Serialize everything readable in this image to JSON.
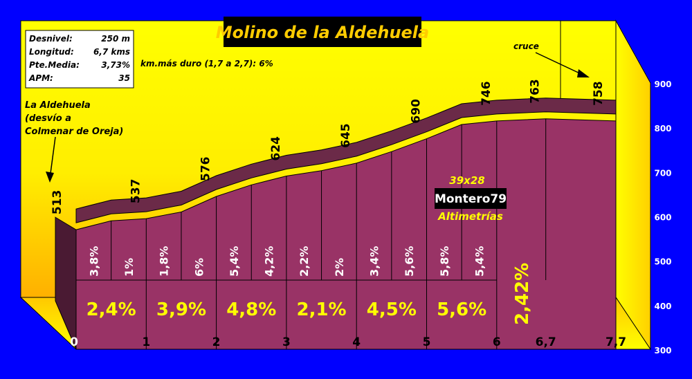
{
  "title": "Molino de la Aldehuela",
  "stats": [
    {
      "label": "Desnivel:",
      "value": "250 m"
    },
    {
      "label": "Longitud:",
      "value": "6,7 kms"
    },
    {
      "label": "Pte.Media:",
      "value": "3,73%"
    },
    {
      "label": "APM:",
      "value": "35"
    }
  ],
  "hardest_km": "km.más duro (1,7 a 2,7): 6%",
  "start_note": [
    "La Aldehuela",
    "(desvío a",
    "Colmenar de Oreja)"
  ],
  "cruce_note": "cruce",
  "credits": {
    "size": "39x28",
    "author": "Montero79",
    "site": "Altimetrías"
  },
  "colors": {
    "background": "#0000ff",
    "wall_top": "#ffff00",
    "wall_bottom": "#ffb000",
    "profile_front": "#993366",
    "profile_side": "#4a1a33",
    "profile_top": "#6b2a48",
    "labels": "#ffff00"
  },
  "chart_data": {
    "type": "area",
    "title": "Molino de la Aldehuela",
    "xlabel": "",
    "ylabel": "",
    "x_ticks": [
      "0",
      "1",
      "2",
      "3",
      "4",
      "5",
      "6",
      "6,7",
      "7,7"
    ],
    "y_ticks": [
      "300",
      "400",
      "500",
      "600",
      "700",
      "800",
      "900"
    ],
    "ylim": [
      300,
      900
    ],
    "xlim": [
      0,
      7.7
    ],
    "grid": false,
    "profile": [
      {
        "x": 0.0,
        "y": 585
      },
      {
        "x": 0.5,
        "y": 605
      },
      {
        "x": 1.0,
        "y": 610
      },
      {
        "x": 1.5,
        "y": 625
      },
      {
        "x": 2.0,
        "y": 660
      },
      {
        "x": 2.5,
        "y": 686
      },
      {
        "x": 3.0,
        "y": 706
      },
      {
        "x": 3.5,
        "y": 718
      },
      {
        "x": 4.0,
        "y": 735
      },
      {
        "x": 4.5,
        "y": 761
      },
      {
        "x": 5.0,
        "y": 790
      },
      {
        "x": 5.5,
        "y": 822
      },
      {
        "x": 6.0,
        "y": 830
      },
      {
        "x": 6.7,
        "y": 835
      },
      {
        "x": 7.7,
        "y": 830
      }
    ],
    "point_labels": [
      {
        "x": 0.0,
        "label": "513"
      },
      {
        "x": 1.0,
        "label": "537"
      },
      {
        "x": 2.0,
        "label": "576"
      },
      {
        "x": 3.0,
        "label": "624"
      },
      {
        "x": 4.0,
        "label": "645"
      },
      {
        "x": 5.0,
        "label": "690"
      },
      {
        "x": 6.0,
        "label": "746"
      },
      {
        "x": 6.7,
        "label": "763"
      },
      {
        "x": 7.7,
        "label": "758"
      }
    ],
    "half_km_gradients": [
      "3,8%",
      "1%",
      "1,8%",
      "6%",
      "5,4%",
      "4,2%",
      "2,2%",
      "2%",
      "3,4%",
      "5,6%",
      "5,8%",
      "5,4%"
    ],
    "km_gradients": [
      "2,4%",
      "3,9%",
      "4,8%",
      "2,1%",
      "4,5%",
      "5,6%"
    ],
    "final_gradient": "2,42%"
  }
}
